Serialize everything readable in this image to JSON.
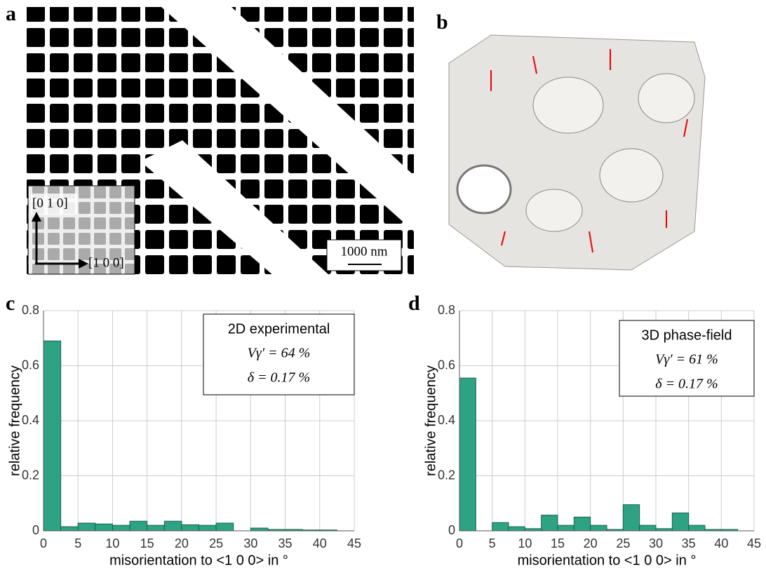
{
  "panels": {
    "a": {
      "label": "a",
      "axis_y": "[0 1 0]",
      "axis_x": "[1 0 0]",
      "scale_bar": "1000 nm"
    },
    "b": {
      "label": "b"
    }
  },
  "chart_data": [
    {
      "type": "histogram",
      "panel_label": "c",
      "annotations": [
        "2D experimental",
        "Vγ′ = 64 %",
        "δ = 0.17 %"
      ],
      "xlabel": "misorientation to <1 0 0> in °",
      "ylabel": "relative frequency",
      "bins": [
        0,
        2.5,
        5,
        7.5,
        10,
        12.5,
        15,
        17.5,
        20,
        22.5,
        25,
        27.5,
        30,
        32.5,
        35,
        37.5,
        40,
        42.5
      ],
      "values": [
        0.69,
        0.015,
        0.028,
        0.025,
        0.02,
        0.035,
        0.02,
        0.035,
        0.022,
        0.02,
        0.028,
        0.0,
        0.01,
        0.005,
        0.005,
        0.003,
        0.003
      ],
      "color": "#2ea383",
      "xlim": [
        0,
        45
      ],
      "ylim": [
        0,
        0.8
      ],
      "xticks": [
        0,
        5,
        10,
        15,
        20,
        25,
        30,
        35,
        40,
        45
      ],
      "yticks": [
        0,
        0.2,
        0.4,
        0.6,
        0.8
      ],
      "grid": true
    },
    {
      "type": "histogram",
      "panel_label": "d",
      "annotations": [
        "3D phase-field",
        "Vγ′ = 61 %",
        "δ = 0.17 %"
      ],
      "xlabel": "misorientation to <1 0 0> in °",
      "ylabel": "relative frequency",
      "bins": [
        0,
        2.5,
        5,
        7.5,
        10,
        12.5,
        15,
        17.5,
        20,
        22.5,
        25,
        27.5,
        30,
        32.5,
        35,
        37.5,
        40,
        42.5
      ],
      "values": [
        0.555,
        0.0,
        0.03,
        0.015,
        0.008,
        0.057,
        0.02,
        0.05,
        0.02,
        0.005,
        0.095,
        0.02,
        0.008,
        0.065,
        0.02,
        0.005,
        0.005
      ],
      "color": "#2ea383",
      "xlim": [
        0,
        45
      ],
      "ylim": [
        0,
        0.8
      ],
      "xticks": [
        0,
        5,
        10,
        15,
        20,
        25,
        30,
        35,
        40,
        45
      ],
      "yticks": [
        0,
        0.2,
        0.4,
        0.6,
        0.8
      ],
      "grid": true
    }
  ]
}
